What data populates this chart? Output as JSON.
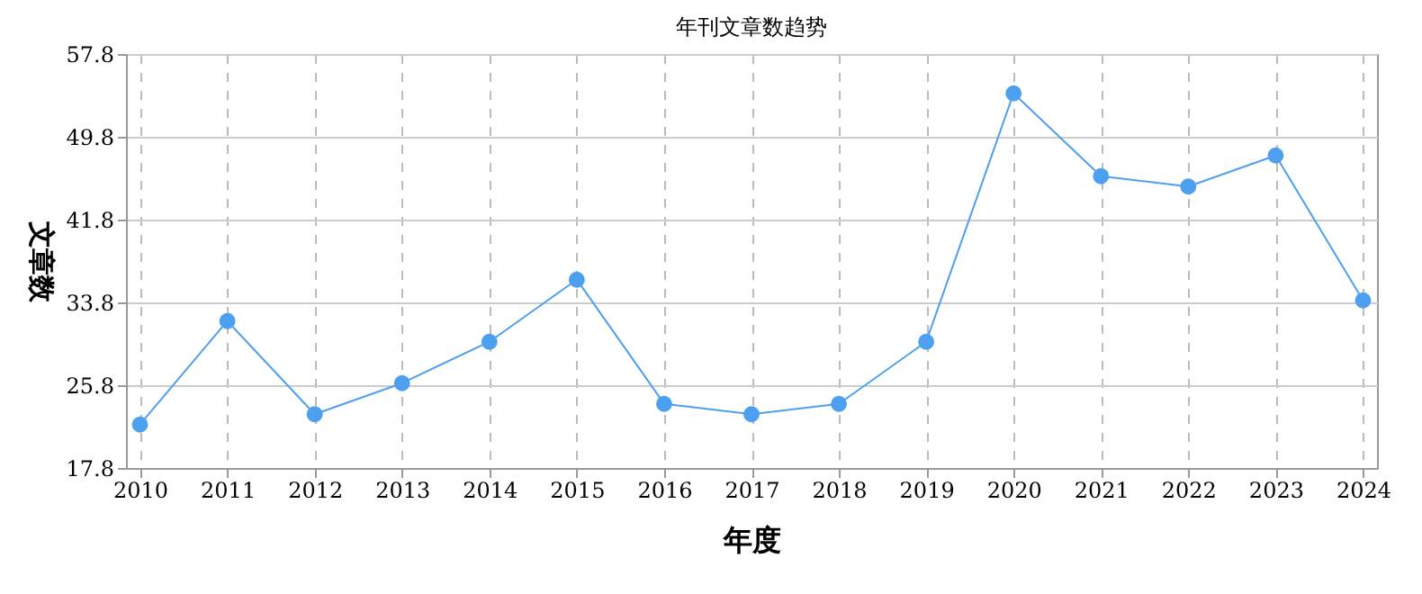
{
  "chart_data": {
    "type": "line",
    "title": "年刊文章数趋势",
    "xlabel": "年度",
    "ylabel": "文章数",
    "categories": [
      "2010",
      "2011",
      "2012",
      "2013",
      "2014",
      "2015",
      "2016",
      "2017",
      "2018",
      "2019",
      "2020",
      "2021",
      "2022",
      "2023",
      "2024"
    ],
    "series": [
      {
        "color": "#4d9ff0",
        "values": [
          22,
          32,
          23,
          26,
          30,
          36,
          24,
          23,
          24,
          30,
          54,
          46,
          45,
          48,
          34
        ]
      }
    ],
    "ylim": [
      17.8,
      57.8
    ],
    "yticks": [
      17.8,
      25.8,
      33.8,
      41.8,
      49.8,
      57.8
    ],
    "grid": true,
    "marker": "circle",
    "line_style": "solid"
  }
}
